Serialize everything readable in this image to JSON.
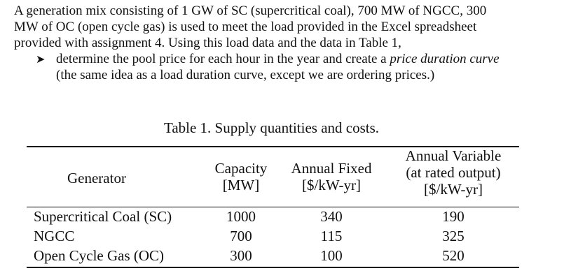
{
  "paragraph": {
    "lines": [
      "A generation mix consisting of 1 GW of SC (supercritical coal), 700 MW of NGCC, 300",
      "MW of OC (open cycle gas) is used to meet the load provided in the Excel spreadsheet",
      "provided with assignment 4. Using this load data and the data in Table 1,"
    ],
    "bullet": {
      "icon": "arrow-bullet-icon",
      "line1_before": "determine the pool price for each hour in the year and create a ",
      "line1_italic": "price duration curve",
      "line2": "(the same idea as a load duration curve, except we are ordering prices.)"
    }
  },
  "table": {
    "caption": "Table 1. Supply quantities and costs.",
    "headers": {
      "generator": "Generator",
      "capacity": [
        "Capacity",
        "[MW]"
      ],
      "fixed": [
        "Annual Fixed",
        "[$/kW-yr]"
      ],
      "variable": [
        "Annual Variable",
        "(at rated output)",
        "[$/kW-yr]"
      ]
    },
    "rows": [
      {
        "name": "Supercritical Coal (SC)",
        "capacity": "1000",
        "fixed": "340",
        "variable": "190"
      },
      {
        "name": "NGCC",
        "capacity": "700",
        "fixed": "115",
        "variable": "325"
      },
      {
        "name": "Open Cycle Gas (OC)",
        "capacity": "300",
        "fixed": "100",
        "variable": "520"
      }
    ]
  }
}
